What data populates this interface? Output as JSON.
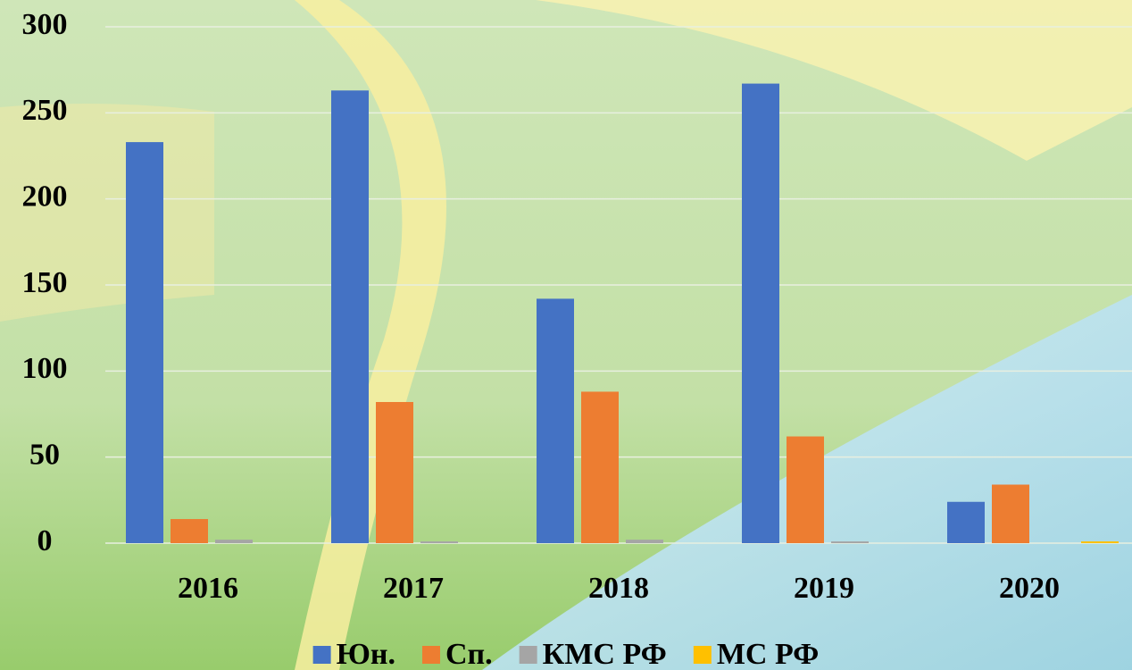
{
  "chart_data": {
    "type": "bar",
    "categories": [
      "2016",
      "2017",
      "2018",
      "2019",
      "2020"
    ],
    "series": [
      {
        "name": "Юн.",
        "color": "#4472c4",
        "values": [
          233,
          263,
          142,
          267,
          24
        ]
      },
      {
        "name": "Сп.",
        "color": "#ed7d31",
        "values": [
          14,
          82,
          88,
          62,
          34
        ]
      },
      {
        "name": "КМС РФ",
        "color": "#a5a5a5",
        "values": [
          2,
          1,
          2,
          1,
          0
        ]
      },
      {
        "name": "МС РФ",
        "color": "#ffc000",
        "values": [
          0,
          0,
          0,
          0,
          1
        ]
      }
    ],
    "ylim": [
      0,
      300
    ],
    "yticks": [
      0,
      50,
      100,
      150,
      200,
      250,
      300
    ],
    "grid": true,
    "legend": "bottom"
  }
}
